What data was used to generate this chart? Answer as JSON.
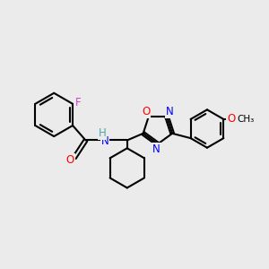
{
  "background_color": "#ebebeb",
  "bond_color": "#000000",
  "atom_colors": {
    "F": "#cc44cc",
    "O": "#ff0000",
    "N": "#0000ff",
    "H": "#44aaaa",
    "C": "#000000"
  },
  "figsize": [
    3.0,
    3.0
  ],
  "dpi": 100
}
